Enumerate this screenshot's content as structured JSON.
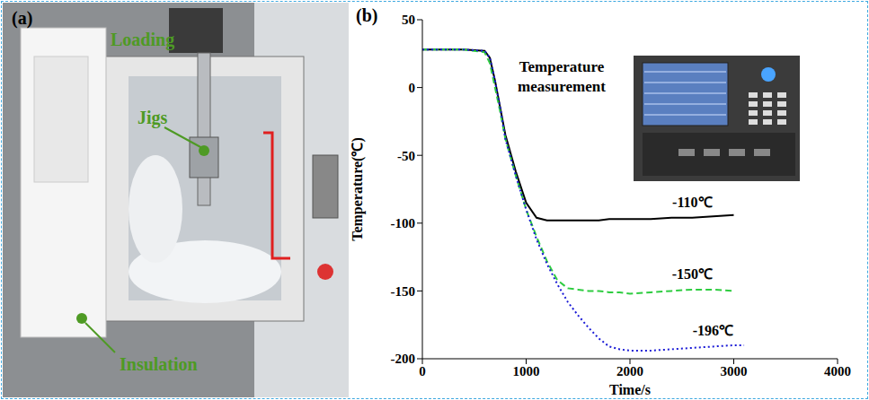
{
  "panels": [
    {
      "letter": "(a)",
      "labels": [
        "Loading",
        "Jigs",
        "Insulation"
      ]
    },
    {
      "letter": "(b)"
    }
  ],
  "chart_data": {
    "type": "line",
    "x_label": "Time/s",
    "y_label": "Temperature(℃)",
    "annotations": [
      "Temperature measurement"
    ],
    "x": [
      0,
      200,
      400,
      600,
      650,
      700,
      750,
      800,
      900,
      1000,
      1100,
      1200,
      1300,
      1400,
      1500,
      1600,
      1700,
      1800,
      1900,
      2000,
      2200,
      2400,
      2600,
      2800,
      3000,
      3100
    ],
    "xlim": [
      0,
      4000
    ],
    "xticks": [
      0,
      1000,
      2000,
      3000,
      4000
    ],
    "ylim": [
      -200,
      50
    ],
    "yticks": [
      -200,
      -150,
      -100,
      -50,
      0,
      50
    ],
    "grid": false,
    "series": [
      {
        "name": "-110℃",
        "color": "#000000",
        "line_style": "solid",
        "values": [
          28,
          28,
          28,
          27,
          22,
          5,
          -15,
          -35,
          -62,
          -85,
          -96,
          -98,
          -98,
          -98,
          -98,
          -98,
          -98,
          -97,
          -97,
          -97,
          -97,
          -96,
          -96,
          -95,
          -94,
          null
        ]
      },
      {
        "name": "-150℃",
        "color": "#2ecc40",
        "line_style": "dashed",
        "values": [
          28,
          28,
          28,
          26,
          18,
          0,
          -18,
          -38,
          -65,
          -90,
          -110,
          -128,
          -142,
          -148,
          -149,
          -150,
          -150,
          -151,
          -151,
          -152,
          -151,
          -150,
          -149,
          -149,
          -150,
          null
        ]
      },
      {
        "name": "-196℃",
        "color": "#1a1ad6",
        "line_style": "dotted",
        "values": [
          28,
          28,
          28,
          27,
          22,
          5,
          -15,
          -38,
          -65,
          -90,
          -112,
          -130,
          -145,
          -158,
          -168,
          -177,
          -185,
          -191,
          -193,
          -194,
          -194,
          -193,
          -192,
          -191,
          -190,
          -190
        ]
      }
    ]
  }
}
